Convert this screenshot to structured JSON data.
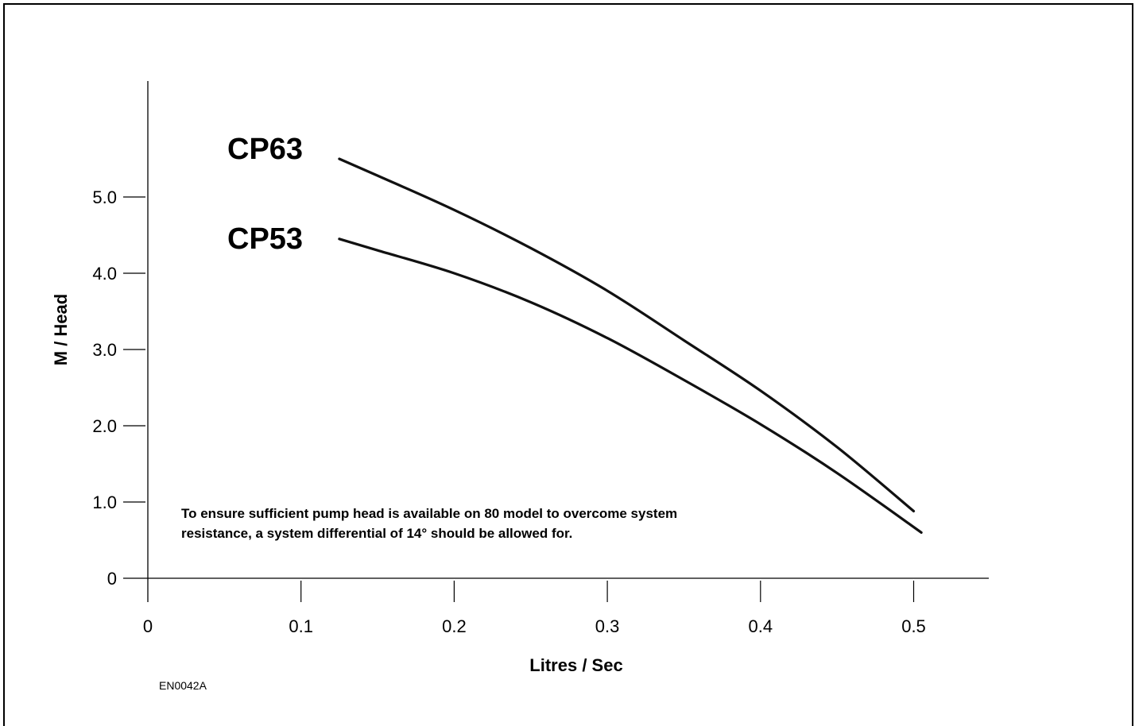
{
  "chart_data": {
    "type": "line",
    "xlabel": "Litres / Sec",
    "ylabel": "M / Head",
    "xlim": [
      0,
      0.55
    ],
    "ylim": [
      0,
      6.5
    ],
    "x_ticks": [
      "0",
      "0.1",
      "0.2",
      "0.3",
      "0.4",
      "0.5"
    ],
    "x_tick_values": [
      0,
      0.1,
      0.2,
      0.3,
      0.4,
      0.5
    ],
    "y_ticks": [
      "0",
      "1.0",
      "2.0",
      "3.0",
      "4.0",
      "5.0"
    ],
    "y_tick_values": [
      0,
      1,
      2,
      3,
      4,
      5
    ],
    "grid": false,
    "series": [
      {
        "name": "CP63",
        "x": [
          0.125,
          0.15,
          0.2,
          0.25,
          0.3,
          0.35,
          0.4,
          0.45,
          0.5
        ],
        "y": [
          5.5,
          5.28,
          4.83,
          4.33,
          3.77,
          3.12,
          2.46,
          1.72,
          0.88
        ]
      },
      {
        "name": "CP53",
        "x": [
          0.125,
          0.15,
          0.2,
          0.25,
          0.3,
          0.35,
          0.4,
          0.45,
          0.505
        ],
        "y": [
          4.45,
          4.3,
          4.0,
          3.62,
          3.15,
          2.6,
          2.02,
          1.38,
          0.6
        ]
      }
    ],
    "annotations": [
      "To ensure sufficient pump head is available on 80 model to overcome system",
      "resistance, a system differential of 14° should be allowed for."
    ],
    "figure_code": "EN0042A"
  }
}
